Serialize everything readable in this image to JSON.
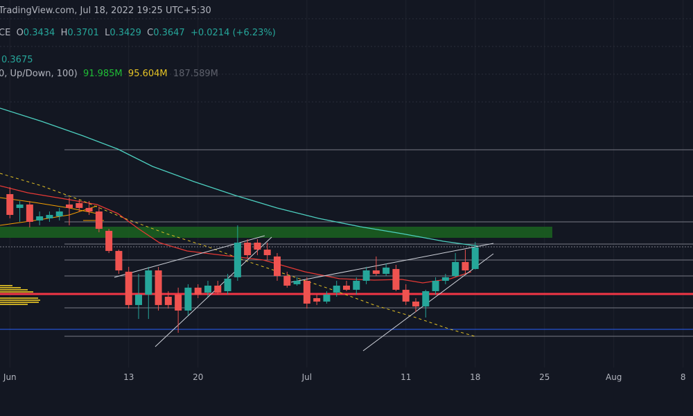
{
  "header": {
    "source": "TradingView.com, Jul 18, 2022 19:25 UTC+5:30",
    "symbol": "CE",
    "legend": [
      {
        "key": "O",
        "value": "0.3434"
      },
      {
        "key": "H",
        "value": "0.3701"
      },
      {
        "key": "L",
        "value": "0.3429"
      },
      {
        "key": "C",
        "value": "0.3647"
      }
    ],
    "change": "+0.0214 (+6.23%)",
    "price": "0.3675",
    "indicator": "0, Up/Down, 100)",
    "indicator_values": [
      "91.985M",
      "95.604M",
      "187.589M"
    ]
  },
  "chart_data": {
    "type": "candlestick",
    "x": [
      "2022-06-01",
      "2022-06-02",
      "2022-06-03",
      "2022-06-04",
      "2022-06-05",
      "2022-06-06",
      "2022-06-07",
      "2022-06-08",
      "2022-06-09",
      "2022-06-10",
      "2022-06-11",
      "2022-06-12",
      "2022-06-13",
      "2022-06-14",
      "2022-06-15",
      "2022-06-16",
      "2022-06-17",
      "2022-06-18",
      "2022-06-19",
      "2022-06-20",
      "2022-06-21",
      "2022-06-22",
      "2022-06-23",
      "2022-06-24",
      "2022-06-25",
      "2022-06-26",
      "2022-06-27",
      "2022-06-28",
      "2022-06-29",
      "2022-06-30",
      "2022-07-01",
      "2022-07-02",
      "2022-07-03",
      "2022-07-04",
      "2022-07-05",
      "2022-07-06",
      "2022-07-07",
      "2022-07-08",
      "2022-07-09",
      "2022-07-10",
      "2022-07-11",
      "2022-07-12",
      "2022-07-13",
      "2022-07-14",
      "2022-07-15",
      "2022-07-16",
      "2022-07-17",
      "2022-07-18"
    ],
    "open": [
      0.4176,
      0.4039,
      0.4073,
      0.3915,
      0.3936,
      0.3956,
      0.4073,
      0.4087,
      0.4039,
      0.4004,
      0.3812,
      0.3613,
      0.3407,
      0.3077,
      0.318,
      0.342,
      0.3159,
      0.318,
      0.3022,
      0.3249,
      0.32,
      0.3269,
      0.3214,
      0.3352,
      0.3695,
      0.3695,
      0.3626,
      0.3558,
      0.3365,
      0.3283,
      0.3317,
      0.3145,
      0.3111,
      0.32,
      0.3269,
      0.3228,
      0.3317,
      0.342,
      0.3386,
      0.3434,
      0.3228,
      0.3111,
      0.3063,
      0.3214,
      0.3317,
      0.3365,
      0.3503,
      0.3434
    ],
    "high": [
      0.4245,
      0.4107,
      0.4107,
      0.4004,
      0.4004,
      0.4039,
      0.4142,
      0.4121,
      0.4107,
      0.4052,
      0.3832,
      0.3626,
      0.3455,
      0.3386,
      0.3455,
      0.3455,
      0.3214,
      0.3249,
      0.3283,
      0.3283,
      0.3317,
      0.3317,
      0.3386,
      0.3867,
      0.3729,
      0.3729,
      0.3695,
      0.3592,
      0.3407,
      0.3352,
      0.3352,
      0.318,
      0.3214,
      0.3317,
      0.3317,
      0.3352,
      0.3455,
      0.3558,
      0.3489,
      0.3475,
      0.3283,
      0.3145,
      0.3228,
      0.3352,
      0.3386,
      0.3592,
      0.3626,
      0.3701
    ],
    "low": [
      0.3936,
      0.3901,
      0.3846,
      0.3867,
      0.3901,
      0.3915,
      0.3867,
      0.4004,
      0.397,
      0.3798,
      0.3592,
      0.3386,
      0.3042,
      0.2939,
      0.2939,
      0.3022,
      0.3042,
      0.2802,
      0.2974,
      0.3145,
      0.3159,
      0.318,
      0.318,
      0.3317,
      0.3544,
      0.3571,
      0.3523,
      0.3317,
      0.3249,
      0.3269,
      0.3042,
      0.3077,
      0.3091,
      0.3159,
      0.3214,
      0.318,
      0.3283,
      0.3365,
      0.3365,
      0.3214,
      0.3077,
      0.3008,
      0.2953,
      0.318,
      0.3283,
      0.3352,
      0.3386,
      0.3429
    ],
    "close": [
      0.397,
      0.4073,
      0.3901,
      0.3956,
      0.397,
      0.4004,
      0.4039,
      0.4039,
      0.4004,
      0.3832,
      0.3613,
      0.342,
      0.3077,
      0.318,
      0.342,
      0.3077,
      0.3077,
      0.3022,
      0.3249,
      0.318,
      0.3269,
      0.32,
      0.3338,
      0.3695,
      0.3571,
      0.3626,
      0.3571,
      0.3365,
      0.3269,
      0.3317,
      0.3091,
      0.3111,
      0.318,
      0.3269,
      0.3228,
      0.3317,
      0.342,
      0.3386,
      0.3448,
      0.3228,
      0.3111,
      0.3063,
      0.3214,
      0.3317,
      0.3352,
      0.3503,
      0.342,
      0.3647
    ],
    "up_color": "#26a69a",
    "down_color": "#ef5350",
    "ylim": [
      0.2458,
      0.61
    ],
    "xlim": [
      "2022-05-31",
      "2022-08-09"
    ],
    "xticks": [
      {
        "value": "2022-06-01",
        "label": "Jun"
      },
      {
        "value": "2022-06-13",
        "label": "13"
      },
      {
        "value": "2022-06-20",
        "label": "20"
      },
      {
        "value": "2022-07-01",
        "label": "Jul"
      },
      {
        "value": "2022-07-11",
        "label": "11"
      },
      {
        "value": "2022-07-18",
        "label": "18"
      },
      {
        "value": "2022-07-25",
        "label": "25"
      },
      {
        "value": "2022-08-01",
        "label": "Aug"
      },
      {
        "value": "2022-08-08",
        "label": "8"
      }
    ]
  }
}
